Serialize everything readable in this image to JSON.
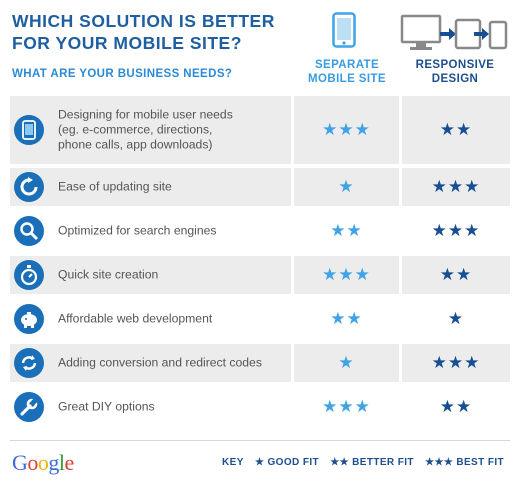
{
  "header": {
    "title_line1": "WHICH SOLUTION IS BETTER",
    "title_line2": "FOR YOUR MOBILE SITE?",
    "subtitle": "WHAT ARE YOUR BUSINESS NEEDS?",
    "col_separate_line1": "SEPARATE",
    "col_separate_line2": "MOBILE SITE",
    "col_responsive_line1": "RESPONSIVE",
    "col_responsive_line2": "DESIGN"
  },
  "rows": [
    {
      "label_line1": "Designing for mobile user needs",
      "label_line2": "(eg. e-commerce, directions,",
      "label_line3": "phone calls, app downloads)",
      "separate": "★★★",
      "responsive": "★★",
      "icon": "phone-icon"
    },
    {
      "label_line1": "Ease of updating site",
      "separate": "★",
      "responsive": "★★★",
      "icon": "refresh-icon"
    },
    {
      "label_line1": "Optimized for search engines",
      "separate": "★★",
      "responsive": "★★★",
      "icon": "search-icon"
    },
    {
      "label_line1": "Quick site creation",
      "separate": "★★★",
      "responsive": "★★",
      "icon": "stopwatch-icon"
    },
    {
      "label_line1": "Affordable web development",
      "separate": "★★",
      "responsive": "★",
      "icon": "piggy-bank-icon"
    },
    {
      "label_line1": "Adding conversion and redirect codes",
      "separate": "★",
      "responsive": "★★★",
      "icon": "redirect-icon"
    },
    {
      "label_line1": "Great DIY options",
      "separate": "★★★",
      "responsive": "★★",
      "icon": "wrench-icon"
    }
  ],
  "footer": {
    "logo": "Google",
    "key_label": "KEY",
    "key_good": "★ GOOD FIT",
    "key_better": "★★ BETTER FIT",
    "key_best": "★★★ BEST FIT"
  },
  "colors": {
    "title": "#1f5fa0",
    "accent_light": "#3fa3e6",
    "accent_dark": "#174f92",
    "row_alt": "#ececec"
  }
}
